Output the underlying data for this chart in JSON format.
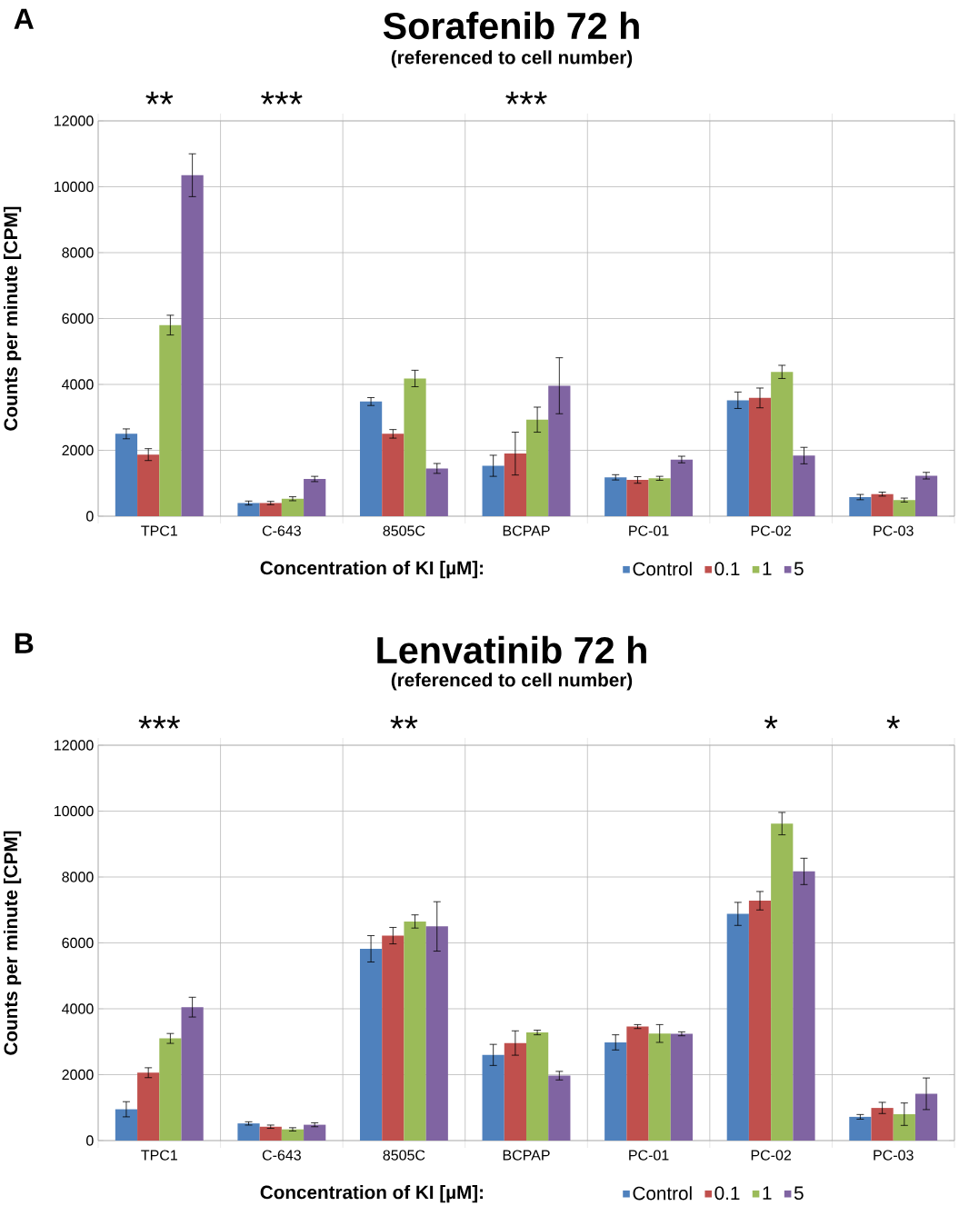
{
  "chart_data": [
    {
      "type": "bar",
      "title": "Sorafenib 72 h",
      "subtitle": "(referenced to cell number)",
      "ylabel": "Counts per minute [CPM]",
      "legend_title": "Concentration  of  KI [µM]:",
      "categories": [
        "TPC1",
        "C-643",
        "8505C",
        "BCPAP",
        "PC-01",
        "PC-02",
        "PC-03"
      ],
      "series": [
        {
          "name": "Control",
          "color": "#4f81bd",
          "values": [
            2500,
            400,
            3480,
            1530,
            1180,
            3520,
            580
          ],
          "errors": [
            150,
            60,
            120,
            320,
            80,
            250,
            80
          ]
        },
        {
          "name": "0.1",
          "color": "#c0504d",
          "values": [
            1870,
            400,
            2500,
            1900,
            1100,
            3590,
            670
          ],
          "errors": [
            180,
            50,
            130,
            650,
            100,
            300,
            60
          ]
        },
        {
          "name": "1",
          "color": "#9bbb59",
          "values": [
            5800,
            530,
            4180,
            2930,
            1150,
            4380,
            490
          ],
          "errors": [
            300,
            60,
            250,
            380,
            60,
            200,
            60
          ]
        },
        {
          "name": "5",
          "color": "#8064a2",
          "values": [
            10350,
            1130,
            1450,
            3960,
            1720,
            1840,
            1230
          ],
          "errors": [
            650,
            80,
            150,
            850,
            100,
            250,
            100
          ]
        }
      ],
      "ylim": [
        0,
        12000
      ],
      "yticks": [
        0,
        2000,
        4000,
        6000,
        8000,
        10000,
        12000
      ],
      "grid": true,
      "legend": "bottom",
      "annotations": [
        "A",
        "**",
        "***",
        "***"
      ]
    },
    {
      "type": "bar",
      "title": "Lenvatinib 72 h",
      "subtitle": "(referenced to cell number)",
      "ylabel": "Counts per minute [CPM]",
      "legend_title": "Concentration  of  KI [µM]:",
      "categories": [
        "TPC1",
        "C-643",
        "8505C",
        "BCPAP",
        "PC-01",
        "PC-02",
        "PC-03"
      ],
      "series": [
        {
          "name": "Control",
          "color": "#4f81bd",
          "values": [
            950,
            520,
            5820,
            2600,
            2980,
            6880,
            720
          ],
          "errors": [
            230,
            50,
            400,
            320,
            230,
            350,
            70
          ]
        },
        {
          "name": "0.1",
          "color": "#c0504d",
          "values": [
            2060,
            420,
            6220,
            2960,
            3460,
            7280,
            990
          ],
          "errors": [
            150,
            50,
            250,
            370,
            60,
            280,
            170
          ]
        },
        {
          "name": "1",
          "color": "#9bbb59",
          "values": [
            3100,
            340,
            6650,
            3280,
            3250,
            9620,
            800
          ],
          "errors": [
            150,
            50,
            200,
            70,
            270,
            340,
            340
          ]
        },
        {
          "name": "5",
          "color": "#8064a2",
          "values": [
            4050,
            480,
            6500,
            1970,
            3240,
            8170,
            1420
          ],
          "errors": [
            300,
            60,
            750,
            130,
            60,
            400,
            480
          ]
        }
      ],
      "ylim": [
        0,
        12000
      ],
      "yticks": [
        0,
        2000,
        4000,
        6000,
        8000,
        10000,
        12000
      ],
      "grid": true,
      "legend": "bottom",
      "annotations": [
        "B",
        "***",
        "**",
        "*",
        "*"
      ]
    }
  ]
}
